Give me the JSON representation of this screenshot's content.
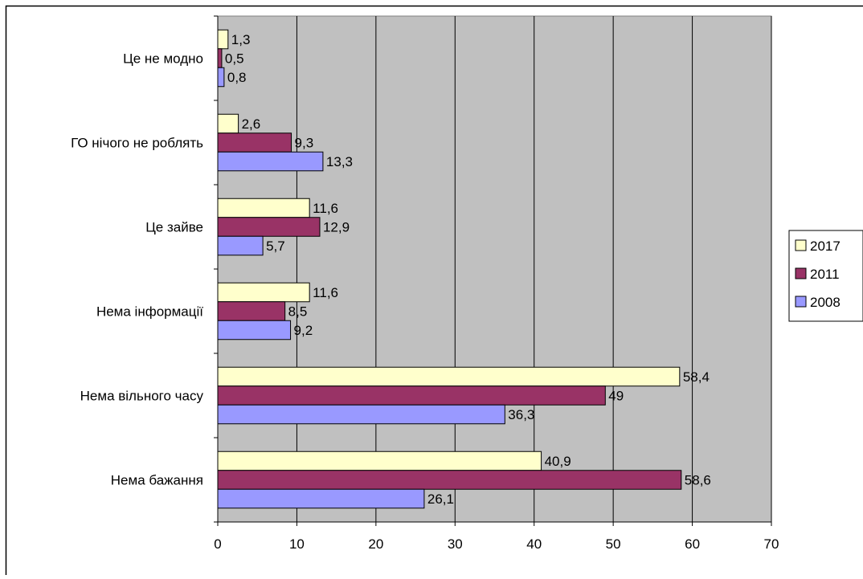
{
  "chart_data": {
    "type": "bar",
    "orientation": "horizontal",
    "title": "",
    "xlabel": "",
    "ylabel": "",
    "categories": [
      "Нема бажання",
      "Нема вільного часу",
      "Нема інформації",
      "Це зайве",
      "ГО нічого не роблять",
      "Це не модно"
    ],
    "series": [
      {
        "name": "2017",
        "color": "#ffffcc",
        "values": [
          40.9,
          58.4,
          11.6,
          11.6,
          2.6,
          1.3
        ],
        "labels": [
          "40,9",
          "58,4",
          "11,6",
          "11,6",
          "2,6",
          "1,3"
        ]
      },
      {
        "name": "2011",
        "color": "#993366",
        "values": [
          58.6,
          49,
          8.5,
          12.9,
          9.3,
          0.5
        ],
        "labels": [
          "58,6",
          "49",
          "8,5",
          "12,9",
          "9,3",
          "0,5"
        ]
      },
      {
        "name": "2008",
        "color": "#9999ff",
        "values": [
          26.1,
          36.3,
          9.2,
          5.7,
          13.3,
          0.8
        ],
        "labels": [
          "26,1",
          "36,3",
          "9,2",
          "5,7",
          "13,3",
          "0,8"
        ]
      }
    ],
    "xlim": [
      0,
      70
    ],
    "x_ticks": [
      0,
      10,
      20,
      30,
      40,
      50,
      60,
      70
    ],
    "grid": true,
    "plot_background": "#c0c0c0",
    "legend_position": "right"
  }
}
